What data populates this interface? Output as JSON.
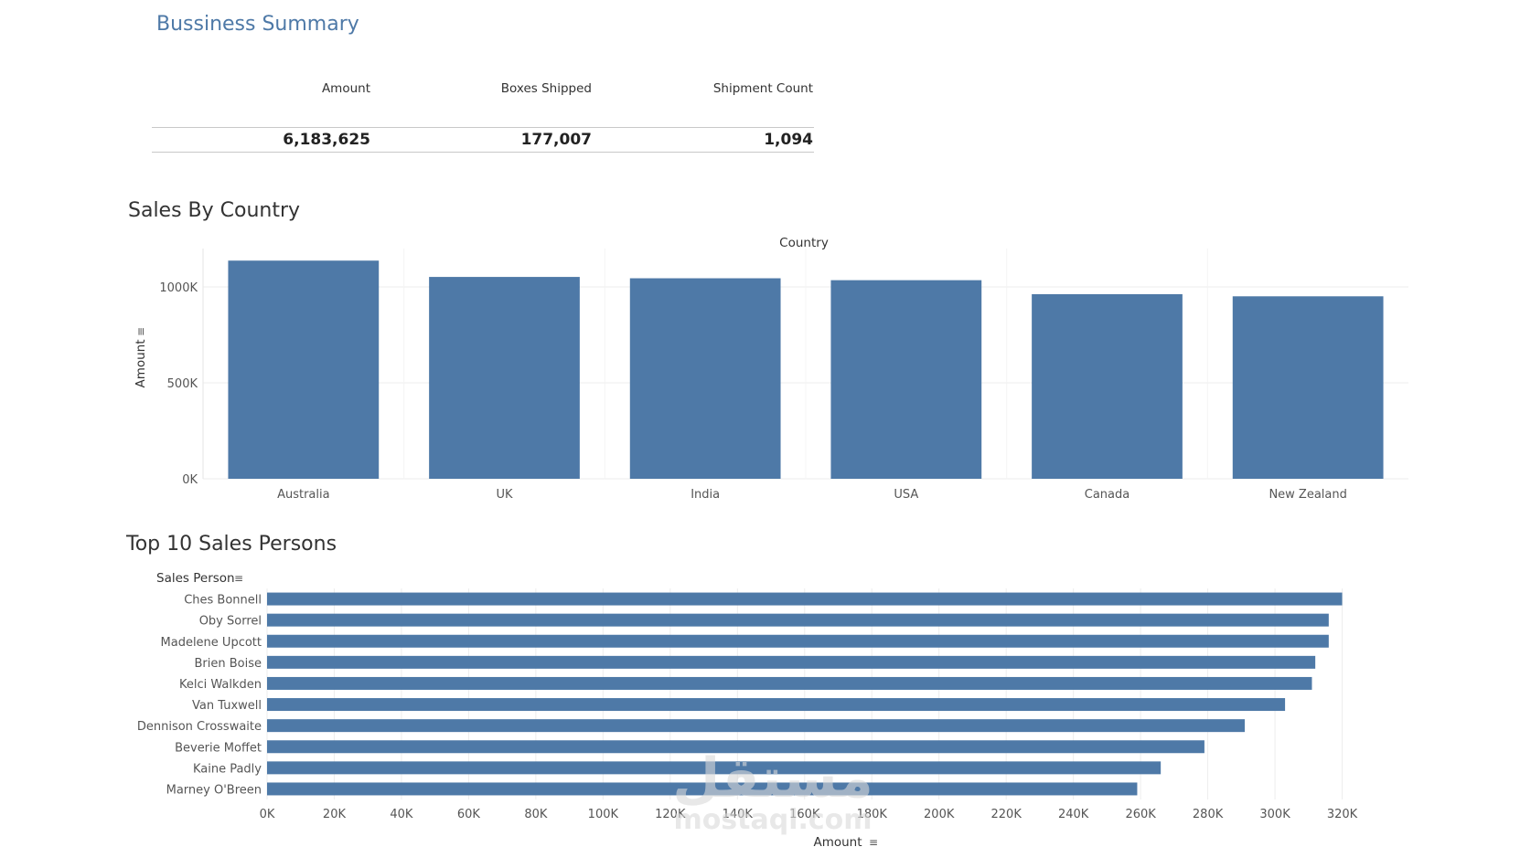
{
  "page_title": "Bussiness Summary",
  "kpis": {
    "headers": [
      "Amount",
      "Boxes Shipped",
      "Shipment Count"
    ],
    "values": [
      "6,183,625",
      "177,007",
      "1,094"
    ]
  },
  "chart_data": [
    {
      "type": "bar",
      "title": "Sales By Country",
      "xlabel": "Country",
      "ylabel": "Amount",
      "categories": [
        "Australia",
        "UK",
        "India",
        "USA",
        "Canada",
        "New Zealand"
      ],
      "values": [
        1137000,
        1052000,
        1045000,
        1035000,
        962000,
        951000
      ],
      "yticks": [
        {
          "value": 0,
          "label": "0K"
        },
        {
          "value": 500000,
          "label": "500K"
        },
        {
          "value": 1000000,
          "label": "1000K"
        }
      ],
      "ylim": [
        0,
        1200000
      ],
      "color": "#4e79a7",
      "grid": true
    },
    {
      "type": "bar",
      "orientation": "horizontal",
      "title": "Top 10 Sales Persons",
      "ylabel": "Sales Person",
      "xlabel": "Amount",
      "categories": [
        "Ches Bonnell",
        "Oby Sorrel",
        "Madelene Upcott",
        "Brien Boise",
        "Kelci Walkden",
        "Van Tuxwell",
        "Dennison Crosswaite",
        "Beverie Moffet",
        "Kaine Padly",
        "Marney O'Breen"
      ],
      "values": [
        320000,
        316000,
        316000,
        312000,
        311000,
        303000,
        291000,
        279000,
        266000,
        259000
      ],
      "xticks": [
        {
          "value": 0,
          "label": "0K"
        },
        {
          "value": 20000,
          "label": "20K"
        },
        {
          "value": 40000,
          "label": "40K"
        },
        {
          "value": 60000,
          "label": "60K"
        },
        {
          "value": 80000,
          "label": "80K"
        },
        {
          "value": 100000,
          "label": "100K"
        },
        {
          "value": 120000,
          "label": "120K"
        },
        {
          "value": 140000,
          "label": "140K"
        },
        {
          "value": 160000,
          "label": "160K"
        },
        {
          "value": 180000,
          "label": "180K"
        },
        {
          "value": 200000,
          "label": "200K"
        },
        {
          "value": 220000,
          "label": "220K"
        },
        {
          "value": 240000,
          "label": "240K"
        },
        {
          "value": 260000,
          "label": "260K"
        },
        {
          "value": 280000,
          "label": "280K"
        },
        {
          "value": 300000,
          "label": "300K"
        },
        {
          "value": 320000,
          "label": "320K"
        }
      ],
      "xlim": [
        0,
        340000
      ],
      "color": "#4e79a7",
      "grid": true
    }
  ],
  "icons": {
    "sort": "sort-descending-icon"
  },
  "watermark": {
    "text": "مستقل",
    "subtext": "mostaql.com"
  }
}
